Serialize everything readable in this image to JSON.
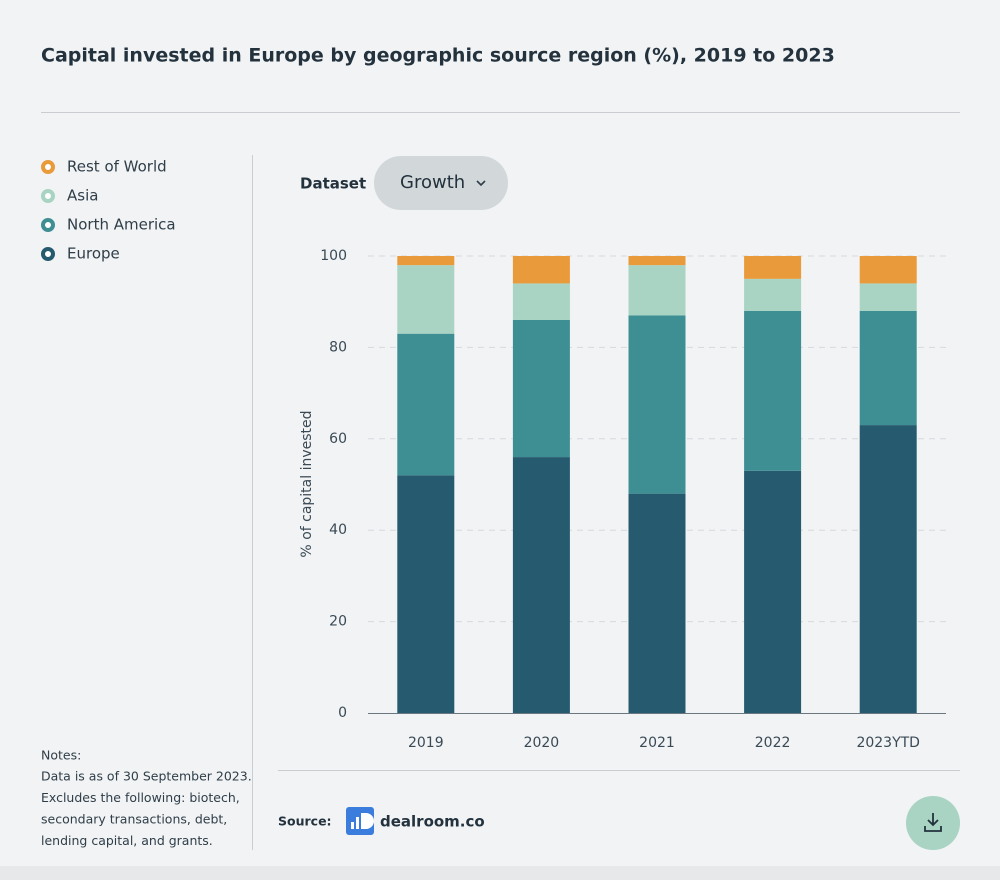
{
  "chart_data": {
    "type": "stacked-bar",
    "title": "Capital invested in Europe by geographic source region (%), 2019 to 2023",
    "categories": [
      "2019",
      "2020",
      "2021",
      "2022",
      "2023YTD"
    ],
    "series": [
      {
        "name": "Europe",
        "color": "#265a6e",
        "values": [
          52,
          56,
          48,
          53,
          63
        ]
      },
      {
        "name": "North America",
        "color": "#3d8f93",
        "values": [
          31,
          30,
          39,
          35,
          25
        ]
      },
      {
        "name": "Asia",
        "color": "#a9d3c2",
        "values": [
          15,
          8,
          11,
          7,
          6
        ]
      },
      {
        "name": "Rest of World",
        "color": "#e99a3a",
        "values": [
          2,
          6,
          2,
          5,
          6
        ]
      }
    ],
    "y_label": "% of capital invested",
    "ylim": [
      0,
      100
    ],
    "yticks": [
      0,
      20,
      40,
      60,
      80,
      100
    ],
    "grid": true
  },
  "controls": {
    "dataset_label": "Dataset",
    "dataset_value": "Growth"
  },
  "notes": {
    "heading": "Notes:",
    "lines": [
      "Data is as of 30 September 2023.",
      "Excludes the following: biotech,",
      "secondary transactions, debt,",
      "lending capital, and grants."
    ]
  },
  "footer": {
    "source_label": "Source:",
    "brand": "dealroom.co"
  }
}
